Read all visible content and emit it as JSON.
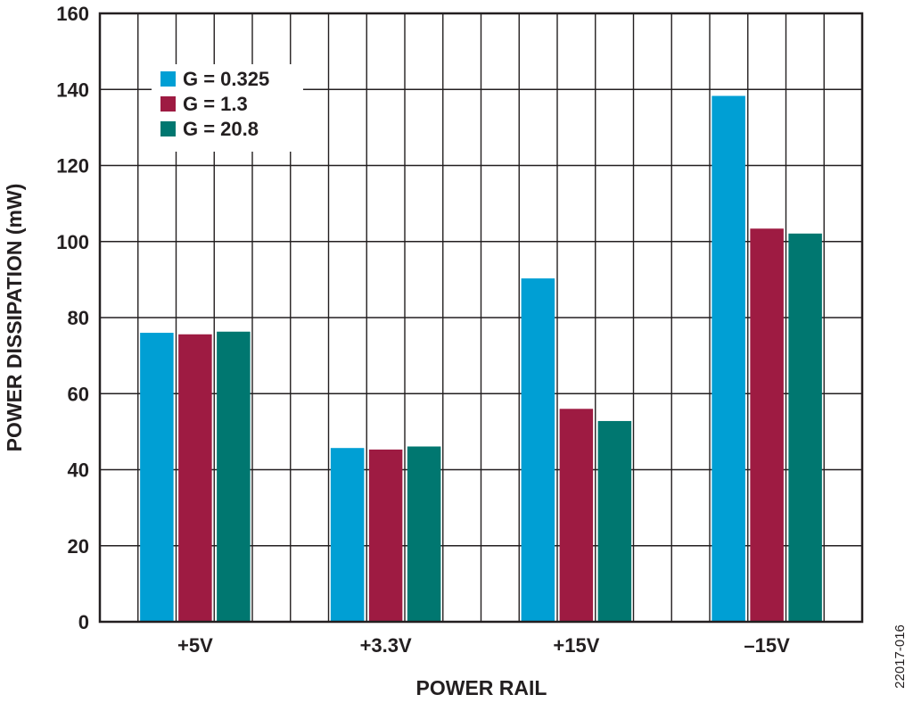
{
  "chart_data": {
    "type": "bar",
    "title": "",
    "xlabel": "POWER RAIL",
    "ylabel": "POWER DISSIPATION (mW)",
    "categories": [
      "+5V",
      "+3.3V",
      "+15V",
      "–15V"
    ],
    "series": [
      {
        "name": "G = 0.325",
        "color": "#009fd4",
        "values": [
          76,
          45.7,
          90.3,
          138.3
        ]
      },
      {
        "name": "G = 1.3",
        "color": "#9e1b42",
        "values": [
          75.6,
          45.3,
          56,
          103.4
        ]
      },
      {
        "name": "G = 20.8",
        "color": "#007770",
        "values": [
          76.3,
          46.1,
          52.8,
          102.1
        ]
      }
    ],
    "ylim": [
      0,
      160
    ],
    "yticks": [
      0,
      20,
      40,
      60,
      80,
      100,
      120,
      140,
      160
    ],
    "grid": true,
    "legend_position": "top-left"
  },
  "figure_id": "22017-016"
}
